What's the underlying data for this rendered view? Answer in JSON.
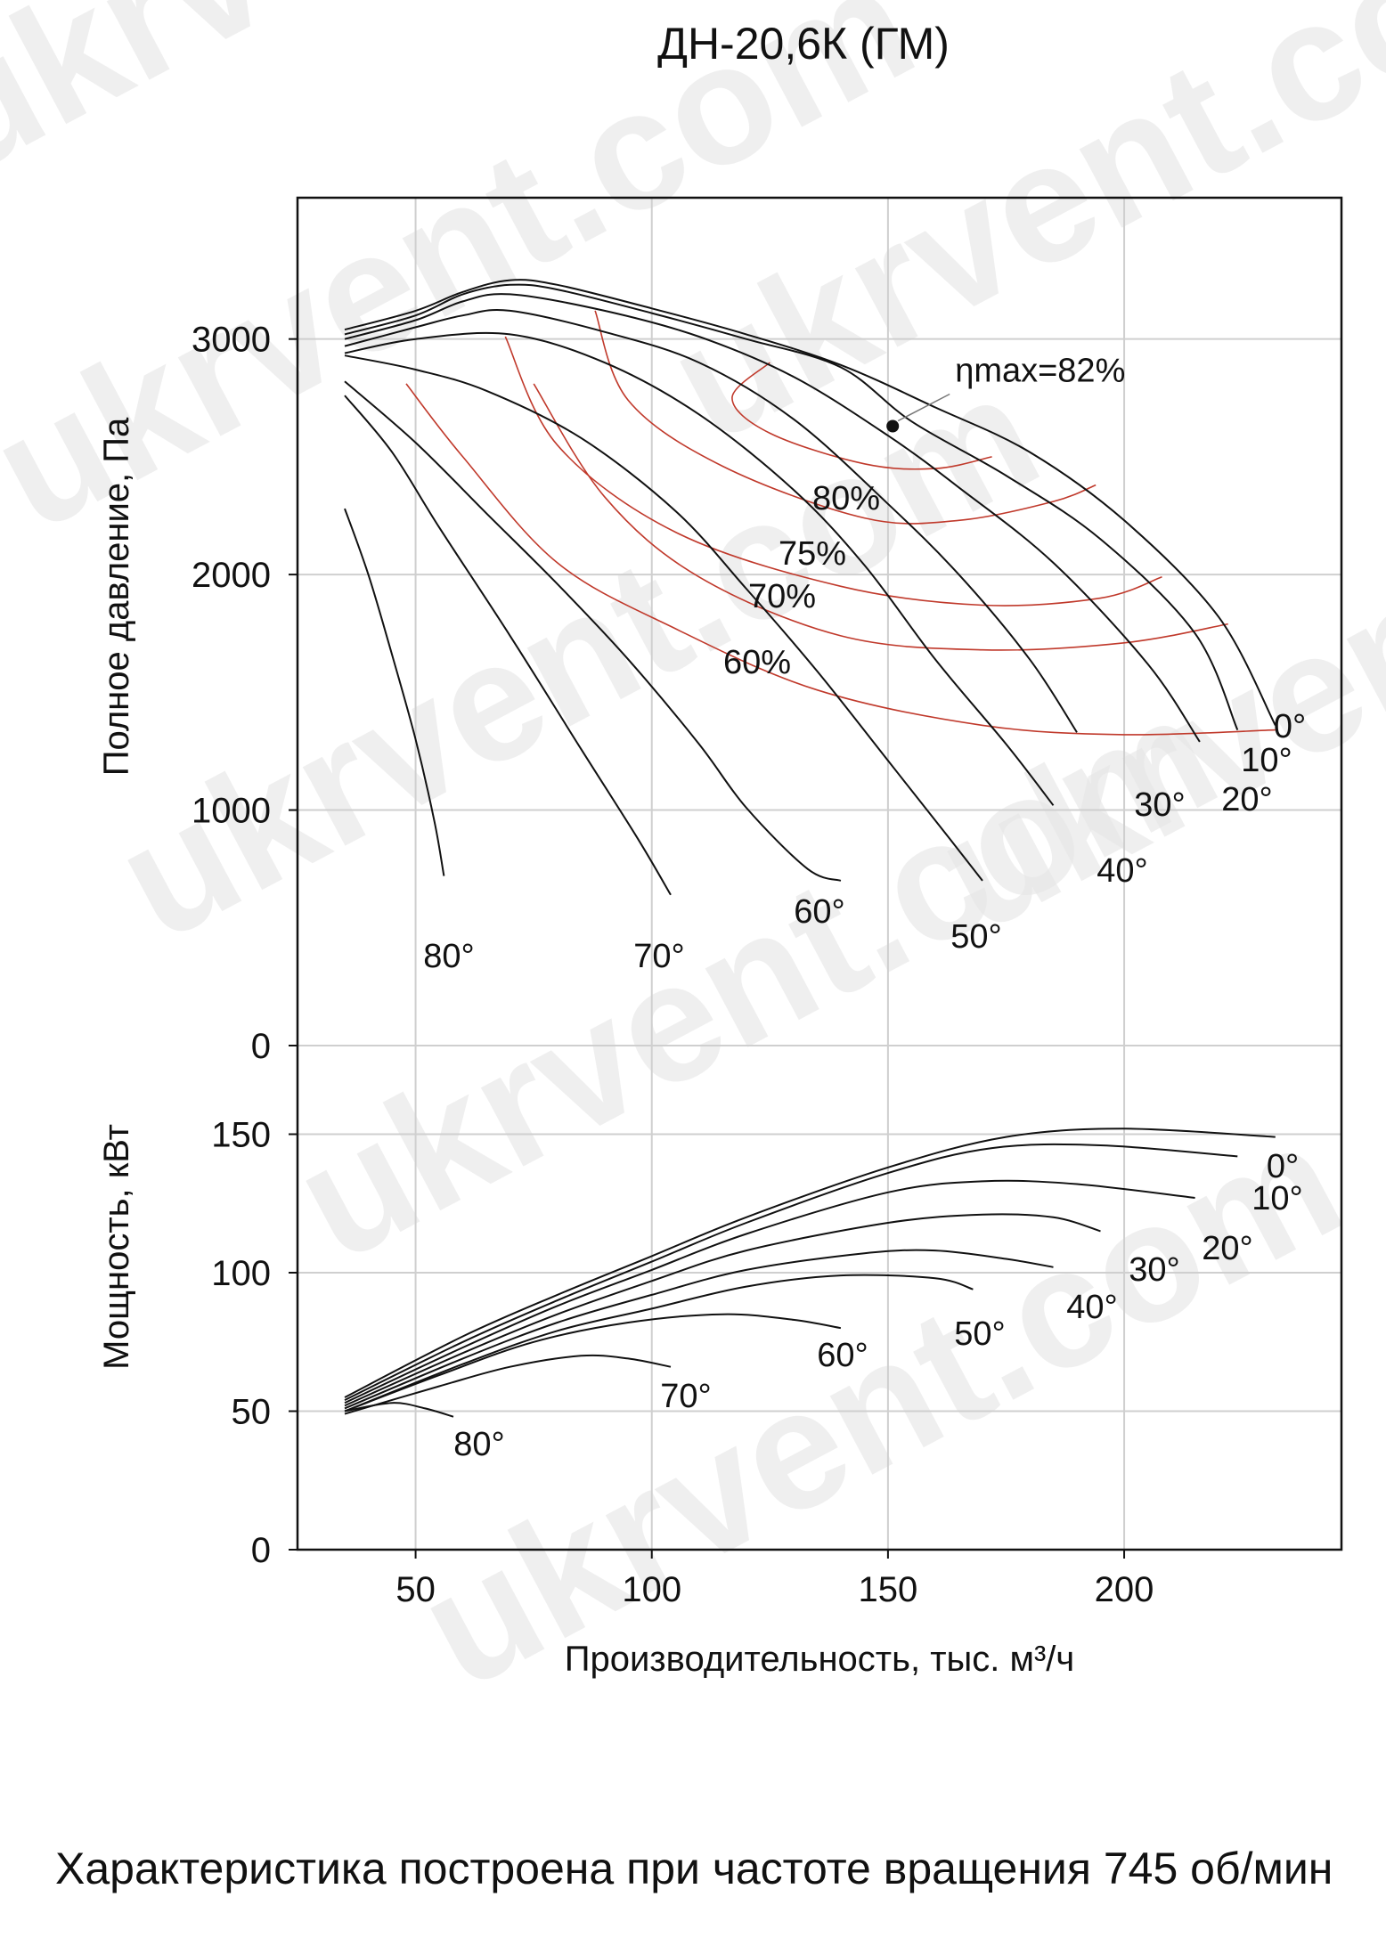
{
  "chart_data": {
    "type": "line",
    "title": "ДН-20,6К (ГМ)",
    "xlabel": "Производительность, тыс. м³/ч",
    "xlim": [
      25,
      246
    ],
    "x_ticks": [
      50,
      100,
      150,
      200
    ],
    "pressure_panel": {
      "ylabel": "Полное давление, Па",
      "ylim": [
        0,
        3600
      ],
      "y_ticks": [
        0,
        1000,
        2000,
        3000
      ],
      "series": [
        {
          "name": "0°",
          "points": [
            [
              35,
              3040
            ],
            [
              50,
              3120
            ],
            [
              60,
              3200
            ],
            [
              70,
              3250
            ],
            [
              80,
              3230
            ],
            [
              100,
              3130
            ],
            [
              120,
              3020
            ],
            [
              140,
              2890
            ],
            [
              160,
              2710
            ],
            [
              180,
              2520
            ],
            [
              200,
              2230
            ],
            [
              220,
              1820
            ],
            [
              232,
              1360
            ]
          ]
        },
        {
          "name": "10°",
          "points": [
            [
              35,
              3020
            ],
            [
              50,
              3100
            ],
            [
              60,
              3190
            ],
            [
              70,
              3230
            ],
            [
              80,
              3210
            ],
            [
              100,
              3110
            ],
            [
              120,
              3000
            ],
            [
              140,
              2880
            ],
            [
              155,
              2650
            ],
            [
              175,
              2420
            ],
            [
              195,
              2150
            ],
            [
              215,
              1750
            ],
            [
              224,
              1340
            ]
          ]
        },
        {
          "name": "20°",
          "points": [
            [
              35,
              3000
            ],
            [
              50,
              3080
            ],
            [
              60,
              3160
            ],
            [
              70,
              3190
            ],
            [
              90,
              3120
            ],
            [
              110,
              3010
            ],
            [
              130,
              2840
            ],
            [
              150,
              2590
            ],
            [
              165,
              2370
            ],
            [
              185,
              2050
            ],
            [
              205,
              1620
            ],
            [
              216,
              1290
            ]
          ]
        },
        {
          "name": "30°",
          "points": [
            [
              35,
              2970
            ],
            [
              50,
              3050
            ],
            [
              60,
              3100
            ],
            [
              70,
              3120
            ],
            [
              90,
              3030
            ],
            [
              110,
              2900
            ],
            [
              130,
              2660
            ],
            [
              150,
              2300
            ],
            [
              165,
              2000
            ],
            [
              180,
              1640
            ],
            [
              190,
              1330
            ]
          ]
        },
        {
          "name": "40°",
          "points": [
            [
              35,
              2940
            ],
            [
              50,
              3000
            ],
            [
              70,
              3020
            ],
            [
              90,
              2900
            ],
            [
              110,
              2680
            ],
            [
              130,
              2360
            ],
            [
              145,
              2040
            ],
            [
              160,
              1640
            ],
            [
              175,
              1280
            ],
            [
              185,
              1020
            ]
          ]
        },
        {
          "name": "50°",
          "points": [
            [
              35,
              2930
            ],
            [
              50,
              2870
            ],
            [
              65,
              2780
            ],
            [
              85,
              2580
            ],
            [
              105,
              2270
            ],
            [
              120,
              1940
            ],
            [
              135,
              1590
            ],
            [
              150,
              1210
            ],
            [
              163,
              880
            ],
            [
              170,
              700
            ]
          ]
        },
        {
          "name": "60°",
          "points": [
            [
              35,
              2820
            ],
            [
              50,
              2560
            ],
            [
              65,
              2260
            ],
            [
              80,
              1960
            ],
            [
              95,
              1640
            ],
            [
              110,
              1280
            ],
            [
              120,
              1010
            ],
            [
              133,
              750
            ],
            [
              140,
              700
            ]
          ]
        },
        {
          "name": "70°",
          "points": [
            [
              35,
              2760
            ],
            [
              45,
              2520
            ],
            [
              55,
              2200
            ],
            [
              70,
              1740
            ],
            [
              85,
              1260
            ],
            [
              97,
              880
            ],
            [
              104,
              640
            ]
          ]
        },
        {
          "name": "80°",
          "points": [
            [
              35,
              2280
            ],
            [
              40,
              2000
            ],
            [
              45,
              1660
            ],
            [
              50,
              1300
            ],
            [
              54,
              950
            ],
            [
              56,
              720
            ]
          ]
        }
      ],
      "efficiency_contours": [
        {
          "name": "60%",
          "label": "60%",
          "points": [
            [
              48,
              2810
            ],
            [
              60,
              2500
            ],
            [
              80,
              2050
            ],
            [
              105,
              1770
            ],
            [
              135,
              1510
            ],
            [
              170,
              1360
            ],
            [
              200,
              1320
            ],
            [
              232,
              1340
            ]
          ]
        },
        {
          "name": "70%",
          "label": "70%",
          "points": [
            [
              75,
              2810
            ],
            [
              90,
              2330
            ],
            [
              110,
              1990
            ],
            [
              140,
              1740
            ],
            [
              170,
              1680
            ],
            [
              200,
              1710
            ],
            [
              222,
              1790
            ]
          ]
        },
        {
          "name": "75%",
          "label": "75%",
          "points": [
            [
              69,
              3010
            ],
            [
              80,
              2550
            ],
            [
              105,
              2180
            ],
            [
              140,
              1950
            ],
            [
              170,
              1870
            ],
            [
              195,
              1900
            ],
            [
              208,
              1990
            ]
          ]
        },
        {
          "name": "80%",
          "label": "80%",
          "points": [
            [
              88,
              3120
            ],
            [
              95,
              2740
            ],
            [
              115,
              2460
            ],
            [
              145,
              2240
            ],
            [
              165,
              2230
            ],
            [
              185,
              2310
            ],
            [
              194,
              2380
            ]
          ]
        },
        {
          "name": "82%",
          "label": "",
          "points": [
            [
              125,
              2900
            ],
            [
              117,
              2750
            ],
            [
              125,
              2600
            ],
            [
              145,
              2470
            ],
            [
              160,
              2450
            ],
            [
              172,
              2500
            ]
          ]
        }
      ],
      "max_efficiency": {
        "label": "ηmax=82%",
        "x": 151,
        "y": 2630
      }
    },
    "power_panel": {
      "ylabel": "Мощность, кВт",
      "ylim": [
        0,
        182
      ],
      "y_ticks": [
        0,
        50,
        100,
        150
      ],
      "series": [
        {
          "name": "0°",
          "points": [
            [
              35,
              55
            ],
            [
              60,
              77
            ],
            [
              80,
              92
            ],
            [
              100,
              106
            ],
            [
              120,
              120
            ],
            [
              150,
              138
            ],
            [
              175,
              149
            ],
            [
              200,
              152
            ],
            [
              232,
              149
            ]
          ]
        },
        {
          "name": "10°",
          "points": [
            [
              35,
              54
            ],
            [
              60,
              75
            ],
            [
              80,
              90
            ],
            [
              100,
              104
            ],
            [
              120,
              118
            ],
            [
              150,
              136
            ],
            [
              172,
              145
            ],
            [
              195,
              146
            ],
            [
              224,
              142
            ]
          ]
        },
        {
          "name": "20°",
          "points": [
            [
              35,
              53
            ],
            [
              60,
              73
            ],
            [
              80,
              88
            ],
            [
              100,
              101
            ],
            [
              120,
              114
            ],
            [
              150,
              129
            ],
            [
              170,
              133
            ],
            [
              190,
              132
            ],
            [
              215,
              127
            ]
          ]
        },
        {
          "name": "30°",
          "points": [
            [
              35,
              52
            ],
            [
              60,
              71
            ],
            [
              80,
              85
            ],
            [
              100,
              97
            ],
            [
              120,
              108
            ],
            [
              150,
              118
            ],
            [
              170,
              121
            ],
            [
              185,
              120
            ],
            [
              195,
              115
            ]
          ]
        },
        {
          "name": "40°",
          "points": [
            [
              35,
              51
            ],
            [
              60,
              69
            ],
            [
              80,
              82
            ],
            [
              100,
              92
            ],
            [
              120,
              101
            ],
            [
              145,
              107
            ],
            [
              160,
              108
            ],
            [
              175,
              105
            ],
            [
              185,
              102
            ]
          ]
        },
        {
          "name": "50°",
          "points": [
            [
              35,
              50
            ],
            [
              60,
              67
            ],
            [
              80,
              79
            ],
            [
              100,
              87
            ],
            [
              120,
              95
            ],
            [
              140,
              99
            ],
            [
              160,
              98
            ],
            [
              168,
              94
            ]
          ]
        },
        {
          "name": "60°",
          "points": [
            [
              35,
              50
            ],
            [
              55,
              63
            ],
            [
              75,
              75
            ],
            [
              95,
              82
            ],
            [
              115,
              85
            ],
            [
              130,
              83
            ],
            [
              140,
              80
            ]
          ]
        },
        {
          "name": "70°",
          "points": [
            [
              35,
              49
            ],
            [
              55,
              59
            ],
            [
              70,
              66
            ],
            [
              85,
              70
            ],
            [
              95,
              69
            ],
            [
              104,
              66
            ]
          ]
        },
        {
          "name": "80°",
          "points": [
            [
              35,
              50
            ],
            [
              45,
              53
            ],
            [
              52,
              51
            ],
            [
              58,
              48
            ]
          ]
        }
      ]
    },
    "footnote": "Характеристика построена при частоте вращения 745 об/мин"
  },
  "watermark": "ukrvent.com",
  "colors": {
    "curve": "#111111",
    "contour": "#c0392b",
    "grid": "#cfcfcf",
    "frame": "#111111"
  }
}
